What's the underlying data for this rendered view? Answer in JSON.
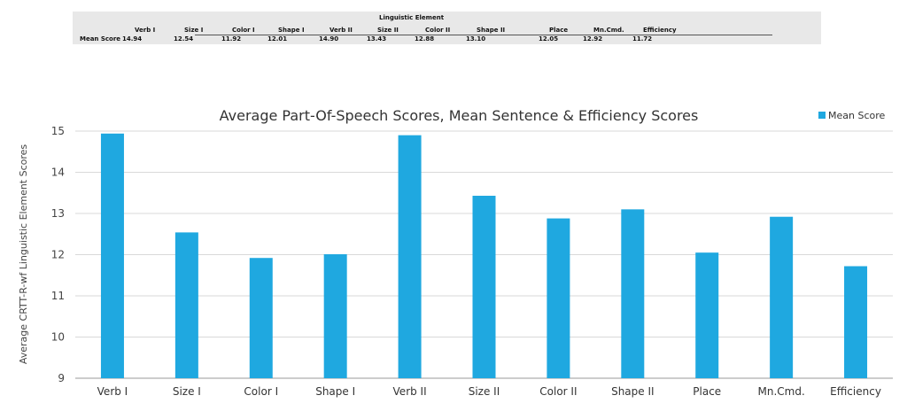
{
  "table": {
    "group_header": "Linguistic Element",
    "row_label": "Mean Score",
    "columns": [
      "Verb I",
      "Size I",
      "Color I",
      "Shape I",
      "Verb II",
      "Size II",
      "Color II",
      "Shape II",
      "Place",
      "Mn.Cmd.",
      "Efficiency"
    ],
    "values": [
      "14.94",
      "12.54",
      "11.92",
      "12.01",
      "14.90",
      "13.43",
      "12.88",
      "13.10",
      "12.05",
      "12.92",
      "11.72"
    ]
  },
  "chart_data": {
    "type": "bar",
    "title": "Average Part-Of-Speech Scores, Mean Sentence & Efficiency Scores",
    "ylabel": "Average CRTT-R-wf Linguistic Element Scores",
    "xlabel": "",
    "categories": [
      "Verb I",
      "Size I",
      "Color I",
      "Shape I",
      "Verb II",
      "Size II",
      "Color II",
      "Shape II",
      "Place",
      "Mn.Cmd.",
      "Efficiency"
    ],
    "series": [
      {
        "name": "Mean Score",
        "values": [
          14.94,
          12.54,
          11.92,
          12.01,
          14.9,
          13.43,
          12.88,
          13.1,
          12.05,
          12.92,
          11.72
        ],
        "color": "#1fa8e0"
      }
    ],
    "ylim": [
      9,
      15
    ],
    "yticks": [
      9,
      10,
      11,
      12,
      13,
      14,
      15
    ],
    "grid": true,
    "legend_position": "top-right"
  }
}
